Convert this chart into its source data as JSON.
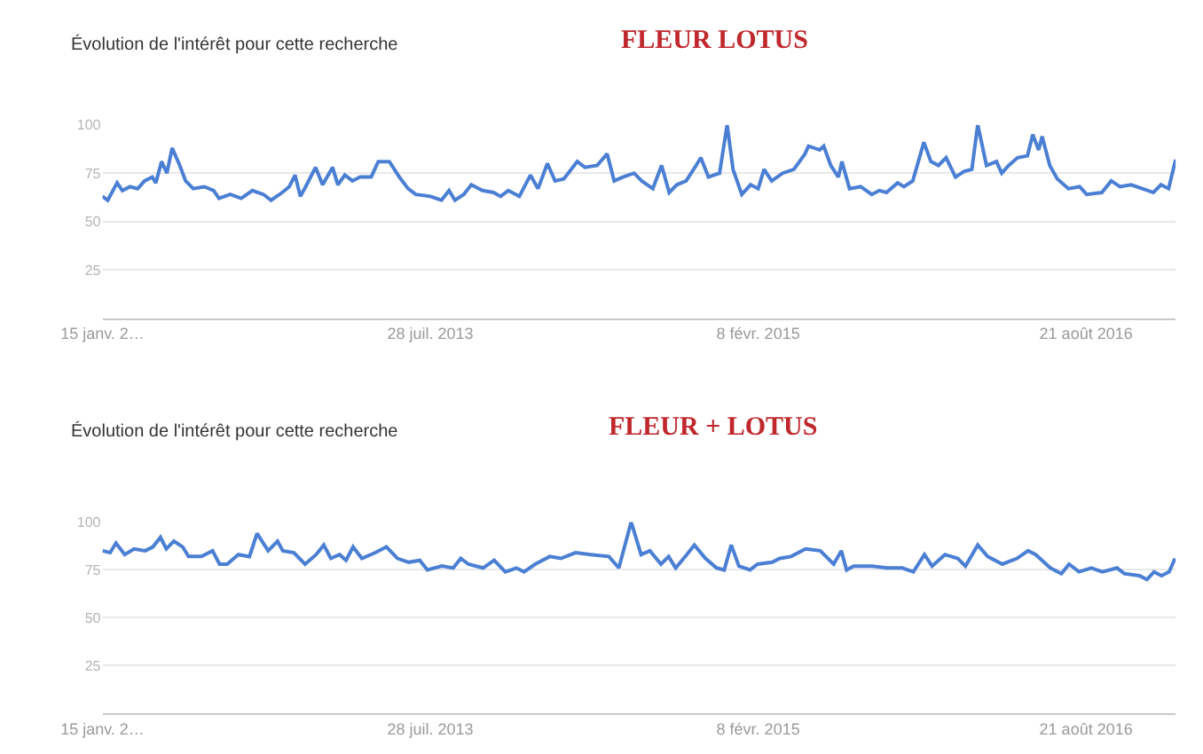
{
  "chart_data": [
    {
      "type": "line",
      "title": "FLEUR LOTUS",
      "subtitle": "Évolution de l'intérêt pour cette recherche",
      "xlim": [
        "2012-01-15",
        "2017-01-21"
      ],
      "xticks": [
        {
          "value": "2012-01-15",
          "label": "15 janv. 2…"
        },
        {
          "value": "2013-07-28",
          "label": "28 juil. 2013"
        },
        {
          "value": "2015-02-08",
          "label": "8 févr. 2015"
        },
        {
          "value": "2016-08-21",
          "label": "21 août 2016"
        }
      ],
      "ylim": [
        0,
        100
      ],
      "yticks": [
        25,
        50,
        75,
        100
      ],
      "grid": "y",
      "series": [
        {
          "color": "#4a7fd4",
          "x": [
            "2012-01-15",
            "2012-01-24",
            "2012-02-09",
            "2012-02-18",
            "2012-03-02",
            "2012-03-15",
            "2012-03-27",
            "2012-04-09",
            "2012-04-15",
            "2012-04-25",
            "2012-05-04",
            "2012-05-13",
            "2012-05-26",
            "2012-06-05",
            "2012-06-18",
            "2012-07-07",
            "2012-07-23",
            "2012-08-01",
            "2012-08-20",
            "2012-09-08",
            "2012-09-27",
            "2012-10-16",
            "2012-10-29",
            "2012-11-17",
            "2012-11-29",
            "2012-12-09",
            "2012-12-18",
            "2012-12-27",
            "2013-01-13",
            "2013-01-25",
            "2013-02-11",
            "2013-02-20",
            "2013-03-04",
            "2013-03-17",
            "2013-03-30",
            "2013-04-18",
            "2013-04-30",
            "2013-05-19",
            "2013-06-05",
            "2013-06-20",
            "2013-07-03",
            "2013-07-28",
            "2013-08-16",
            "2013-08-29",
            "2013-09-08",
            "2013-09-23",
            "2013-10-06",
            "2013-10-25",
            "2013-11-13",
            "2013-11-25",
            "2013-12-08",
            "2013-12-27",
            "2014-01-15",
            "2014-01-28",
            "2014-02-13",
            "2014-02-26",
            "2014-03-13",
            "2014-04-05",
            "2014-04-18",
            "2014-05-09",
            "2014-05-26",
            "2014-06-07",
            "2014-06-22",
            "2014-07-11",
            "2014-07-24",
            "2014-08-12",
            "2014-08-27",
            "2014-09-09",
            "2014-09-22",
            "2014-10-08",
            "2014-10-25",
            "2014-11-02",
            "2014-11-15",
            "2014-12-04",
            "2014-12-17",
            "2014-12-27",
            "2015-01-11",
            "2015-01-26",
            "2015-02-08",
            "2015-02-18",
            "2015-03-03",
            "2015-03-22",
            "2015-04-10",
            "2015-04-29",
            "2015-05-05",
            "2015-05-24",
            "2015-05-31",
            "2015-06-12",
            "2015-06-25",
            "2015-07-01",
            "2015-07-14",
            "2015-08-02",
            "2015-08-21",
            "2015-09-03",
            "2015-09-15",
            "2015-10-04",
            "2015-10-15",
            "2015-10-30",
            "2015-11-18",
            "2015-11-30",
            "2015-12-13",
            "2015-12-26",
            "2016-01-11",
            "2016-01-26",
            "2016-02-08",
            "2016-02-18",
            "2016-03-04",
            "2016-03-21",
            "2016-03-30",
            "2016-04-11",
            "2016-04-26",
            "2016-05-13",
            "2016-05-22",
            "2016-06-01",
            "2016-06-07",
            "2016-06-20",
            "2016-07-03",
            "2016-07-22",
            "2016-08-10",
            "2016-08-22",
            "2016-09-17",
            "2016-10-03",
            "2016-10-18",
            "2016-11-06",
            "2016-11-25",
            "2016-12-14",
            "2016-12-27",
            "2017-01-09",
            "2017-01-21"
          ],
          "values": [
            63,
            61,
            70,
            66,
            68,
            67,
            71,
            73,
            70,
            81,
            75,
            88,
            79,
            71,
            67,
            68,
            66,
            62,
            64,
            62,
            66,
            64,
            61,
            65,
            68,
            74,
            63,
            68,
            78,
            69,
            78,
            69,
            74,
            71,
            73,
            73,
            81,
            81,
            73,
            67,
            64,
            63,
            61,
            66,
            61,
            64,
            69,
            66,
            65,
            63,
            66,
            63,
            74,
            67,
            80,
            71,
            72,
            81,
            78,
            79,
            85,
            71,
            73,
            75,
            71,
            67,
            79,
            65,
            69,
            71,
            79,
            83,
            73,
            75,
            100,
            77,
            64,
            69,
            67,
            77,
            71,
            75,
            77,
            85,
            89,
            87,
            89,
            79,
            73,
            81,
            67,
            68,
            64,
            66,
            65,
            70,
            68,
            71,
            91,
            81,
            79,
            83,
            73,
            76,
            77,
            100,
            79,
            81,
            75,
            79,
            83,
            84,
            95,
            87,
            94,
            79,
            72,
            67,
            68,
            64,
            65,
            71,
            68,
            69,
            67,
            65,
            69,
            67,
            82
          ]
        }
      ]
    },
    {
      "type": "line",
      "title": "FLEUR + LOTUS",
      "subtitle": "Évolution de l'intérêt pour cette recherche",
      "xlim": [
        "2012-01-15",
        "2017-01-21"
      ],
      "xticks": [
        {
          "value": "2012-01-15",
          "label": "15 janv. 2…"
        },
        {
          "value": "2013-07-28",
          "label": "28 juil. 2013"
        },
        {
          "value": "2015-02-08",
          "label": "8 févr. 2015"
        },
        {
          "value": "2016-08-21",
          "label": "21 août 2016"
        }
      ],
      "ylim": [
        0,
        100
      ],
      "yticks": [
        25,
        50,
        75,
        100
      ],
      "grid": "y",
      "series": [
        {
          "color": "#4a7fd4",
          "x": [
            "2012-01-15",
            "2012-01-28",
            "2012-02-07",
            "2012-02-22",
            "2012-03-09",
            "2012-03-28",
            "2012-04-10",
            "2012-04-23",
            "2012-05-03",
            "2012-05-16",
            "2012-05-31",
            "2012-06-10",
            "2012-07-02",
            "2012-07-21",
            "2012-08-02",
            "2012-08-15",
            "2012-09-03",
            "2012-09-22",
            "2012-10-05",
            "2012-10-24",
            "2012-11-09",
            "2012-11-18",
            "2012-12-07",
            "2012-12-26",
            "2013-01-14",
            "2013-01-27",
            "2013-02-08",
            "2013-02-23",
            "2013-03-06",
            "2013-03-18",
            "2013-04-02",
            "2013-04-25",
            "2013-05-14",
            "2013-06-02",
            "2013-06-21",
            "2013-07-10",
            "2013-07-23",
            "2013-08-17",
            "2013-09-05",
            "2013-09-18",
            "2013-10-01",
            "2013-10-26",
            "2013-11-14",
            "2013-12-03",
            "2013-12-22",
            "2014-01-04",
            "2014-01-23",
            "2014-02-17",
            "2014-03-08",
            "2014-04-02",
            "2014-04-28",
            "2014-05-29",
            "2014-06-15",
            "2014-07-06",
            "2014-07-23",
            "2014-08-07",
            "2014-08-26",
            "2014-09-08",
            "2014-09-20",
            "2014-10-09",
            "2014-10-22",
            "2014-11-10",
            "2014-11-29",
            "2014-12-12",
            "2014-12-24",
            "2015-01-06",
            "2015-01-25",
            "2015-02-07",
            "2015-03-04",
            "2015-03-17",
            "2015-04-05",
            "2015-04-30",
            "2015-05-25",
            "2015-06-17",
            "2015-06-30",
            "2015-07-09",
            "2015-07-21",
            "2015-08-22",
            "2015-09-16",
            "2015-10-12",
            "2015-10-31",
            "2015-11-19",
            "2015-12-02",
            "2015-12-24",
            "2016-01-15",
            "2016-01-28",
            "2016-02-18",
            "2016-03-06",
            "2016-03-31",
            "2016-04-25",
            "2016-05-14",
            "2016-05-27",
            "2016-06-21",
            "2016-07-10",
            "2016-07-23",
            "2016-08-09",
            "2016-08-30",
            "2016-09-18",
            "2016-10-13",
            "2016-10-26",
            "2016-11-20",
            "2016-12-03",
            "2016-12-15",
            "2016-12-28",
            "2017-01-10",
            "2017-01-20"
          ],
          "values": [
            85,
            84,
            89,
            83,
            86,
            85,
            87,
            92,
            86,
            90,
            87,
            82,
            82,
            85,
            78,
            78,
            83,
            82,
            94,
            85,
            90,
            85,
            84,
            78,
            83,
            88,
            81,
            83,
            80,
            87,
            81,
            84,
            87,
            81,
            79,
            80,
            75,
            77,
            76,
            81,
            78,
            76,
            80,
            74,
            76,
            74,
            78,
            82,
            81,
            84,
            83,
            82,
            76,
            100,
            83,
            85,
            78,
            82,
            76,
            83,
            88,
            81,
            76,
            75,
            88,
            77,
            75,
            78,
            79,
            81,
            82,
            86,
            85,
            78,
            85,
            75,
            77,
            77,
            76,
            76,
            74,
            83,
            77,
            83,
            81,
            77,
            88,
            82,
            78,
            81,
            85,
            83,
            76,
            73,
            78,
            74,
            76,
            74,
            76,
            73,
            72,
            70,
            74,
            72,
            74,
            81
          ]
        }
      ]
    }
  ]
}
